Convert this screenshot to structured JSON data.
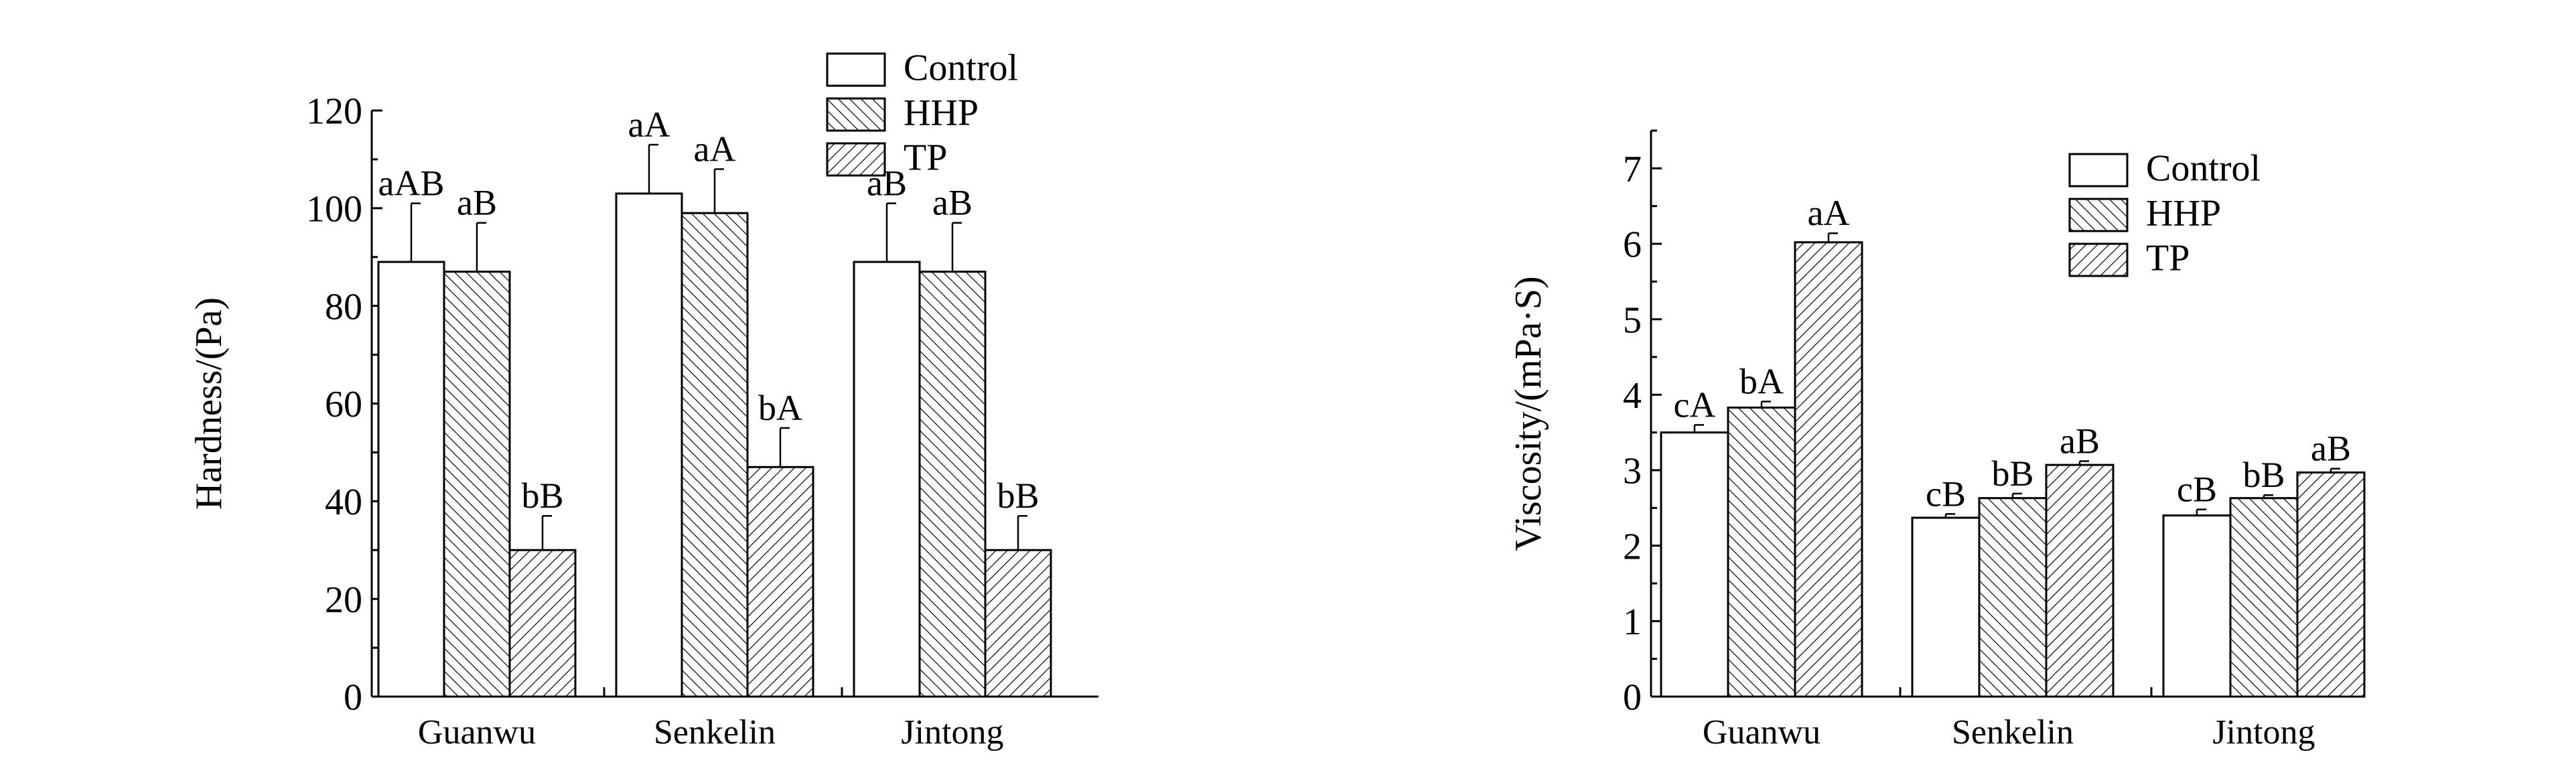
{
  "chart_data": [
    {
      "type": "bar",
      "title": "",
      "xlabel": "",
      "ylabel": "Hardness/(Pa)",
      "ylim": [
        0,
        120
      ],
      "yticks": [
        0,
        20,
        40,
        60,
        80,
        100,
        120
      ],
      "categories": [
        "Guanwu",
        "Senkelin",
        "Jintong"
      ],
      "legend_position": "top-right",
      "series": [
        {
          "name": "Control",
          "values": [
            89,
            103,
            89
          ],
          "errors": [
            12,
            10,
            12
          ],
          "labels": [
            "aAB",
            "aA",
            "aB"
          ]
        },
        {
          "name": "HHP",
          "values": [
            87,
            99,
            87
          ],
          "errors": [
            10,
            9,
            10
          ],
          "labels": [
            "aB",
            "aA",
            "aB"
          ]
        },
        {
          "name": "TP",
          "values": [
            30,
            47,
            30
          ],
          "errors": [
            7,
            8,
            7
          ],
          "labels": [
            "bB",
            "bA",
            "bB"
          ]
        }
      ]
    },
    {
      "type": "bar",
      "title": "",
      "xlabel": "",
      "ylabel": "Viscosity/(mPa·S)",
      "ylim": [
        0,
        7.5
      ],
      "yticks": [
        0,
        1,
        2,
        3,
        4,
        5,
        6,
        7
      ],
      "categories": [
        "Guanwu",
        "Senkelin",
        "Jintong"
      ],
      "legend_position": "top-right",
      "series": [
        {
          "name": "Control",
          "values": [
            3.5,
            2.37,
            2.4
          ],
          "errors": [
            0.1,
            0.05,
            0.08
          ],
          "labels": [
            "cA",
            "cB",
            "cB"
          ]
        },
        {
          "name": "HHP",
          "values": [
            3.83,
            2.63,
            2.63
          ],
          "errors": [
            0.08,
            0.06,
            0.04
          ],
          "labels": [
            "bA",
            "bB",
            "bB"
          ]
        },
        {
          "name": "TP",
          "values": [
            6.02,
            3.07,
            2.97
          ],
          "errors": [
            0.12,
            0.05,
            0.05
          ],
          "labels": [
            "aA",
            "aB",
            "aB"
          ]
        }
      ]
    }
  ],
  "colors": {
    "bar_fill": "#ffffff",
    "stroke": "#000000"
  }
}
